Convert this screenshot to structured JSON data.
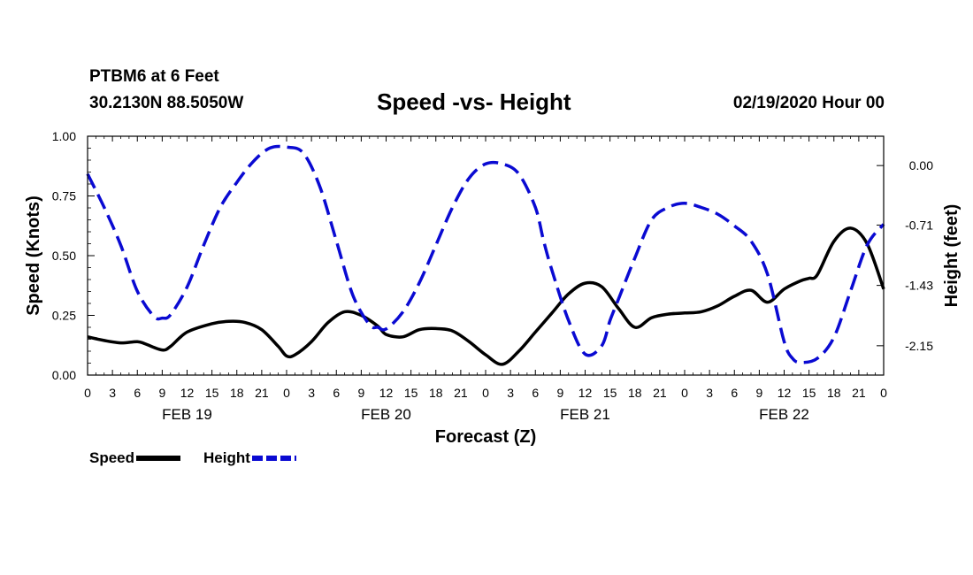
{
  "header": {
    "station": "PTBM6 at 6 Feet",
    "coords": "30.2130N 88.5050W",
    "title": "Speed -vs- Height",
    "datetime": "02/19/2020 Hour 00"
  },
  "legend": {
    "speed_label": "Speed",
    "height_label": "Height"
  },
  "colors": {
    "speed": "#000000",
    "height": "#0a0ad2"
  },
  "chart_data": {
    "type": "line",
    "title": "Speed -vs- Height",
    "xlabel": "Forecast (Z)",
    "ylabel": "Speed (Knots)",
    "y2label": "Height (feet)",
    "xlim": [
      0,
      96
    ],
    "ylim": [
      0,
      1
    ],
    "y2lim": [
      -2.5,
      0.35
    ],
    "x_ticks": [
      0,
      3,
      6,
      9,
      12,
      15,
      18,
      21,
      24,
      27,
      30,
      33,
      36,
      39,
      42,
      45,
      48,
      51,
      54,
      57,
      60,
      63,
      66,
      69,
      72,
      75,
      78,
      81,
      84,
      87,
      90,
      93,
      96
    ],
    "x_tick_labels": [
      "0",
      "3",
      "6",
      "9",
      "12",
      "15",
      "18",
      "21",
      "0",
      "3",
      "6",
      "9",
      "12",
      "15",
      "18",
      "21",
      "0",
      "3",
      "6",
      "9",
      "12",
      "15",
      "18",
      "21",
      "0",
      "3",
      "6",
      "9",
      "12",
      "15",
      "18",
      "21",
      "0"
    ],
    "day_labels": [
      {
        "x": 12,
        "label": "FEB 19"
      },
      {
        "x": 36,
        "label": "FEB 20"
      },
      {
        "x": 60,
        "label": "FEB 21"
      },
      {
        "x": 84,
        "label": "FEB 22"
      }
    ],
    "y_ticks": [
      "0.00",
      "0.25",
      "0.50",
      "0.75",
      "1.00"
    ],
    "y_tick_values": [
      0,
      0.25,
      0.5,
      0.75,
      1.0
    ],
    "y2_ticks": [
      "0.00",
      "-0.71",
      "-1.43",
      "-2.15"
    ],
    "y2_tick_values": [
      0.0,
      -0.71,
      -1.43,
      -2.15
    ],
    "series": [
      {
        "name": "Speed",
        "axis": "left",
        "style": "solid",
        "x": [
          0,
          2,
          4,
          6,
          7,
          9,
          10,
          12,
          15,
          17,
          19,
          21,
          23,
          24,
          25,
          27,
          29,
          31,
          33,
          35,
          36,
          38,
          40,
          42,
          44,
          46,
          48,
          50,
          52,
          54,
          56,
          58,
          60,
          62,
          64,
          66,
          68,
          70,
          72,
          74,
          76,
          78,
          80,
          82,
          84,
          86,
          87,
          88,
          90,
          92,
          94,
          96
        ],
        "values": [
          0.16,
          0.145,
          0.135,
          0.14,
          0.13,
          0.105,
          0.12,
          0.18,
          0.215,
          0.225,
          0.22,
          0.19,
          0.12,
          0.08,
          0.085,
          0.14,
          0.22,
          0.265,
          0.25,
          0.205,
          0.17,
          0.16,
          0.19,
          0.195,
          0.185,
          0.14,
          0.085,
          0.045,
          0.1,
          0.18,
          0.26,
          0.34,
          0.385,
          0.37,
          0.28,
          0.2,
          0.24,
          0.255,
          0.26,
          0.265,
          0.29,
          0.33,
          0.355,
          0.305,
          0.36,
          0.395,
          0.405,
          0.42,
          0.56,
          0.615,
          0.55,
          0.36
        ]
      },
      {
        "name": "Height",
        "axis": "right",
        "style": "dashed",
        "x": [
          0,
          2,
          4,
          6,
          8,
          9,
          10,
          12,
          14,
          16,
          18,
          20,
          22,
          24,
          26,
          28,
          30,
          32,
          34,
          35,
          36,
          38,
          40,
          42,
          44,
          46,
          48,
          50,
          52,
          54,
          55,
          56,
          58,
          60,
          62,
          63,
          64,
          66,
          68,
          70,
          72,
          74,
          76,
          78,
          80,
          82,
          84,
          85,
          86,
          88,
          90,
          92,
          94,
          96
        ],
        "values": [
          -0.1,
          -0.5,
          -0.95,
          -1.5,
          -1.8,
          -1.82,
          -1.78,
          -1.45,
          -0.95,
          -0.5,
          -0.2,
          0.05,
          0.21,
          0.22,
          0.15,
          -0.25,
          -0.9,
          -1.55,
          -1.9,
          -1.93,
          -1.95,
          -1.75,
          -1.4,
          -0.95,
          -0.5,
          -0.15,
          0.02,
          0.02,
          -0.1,
          -0.5,
          -0.9,
          -1.25,
          -1.85,
          -2.25,
          -2.15,
          -1.85,
          -1.6,
          -1.1,
          -0.65,
          -0.5,
          -0.45,
          -0.5,
          -0.58,
          -0.72,
          -0.9,
          -1.3,
          -2.1,
          -2.3,
          -2.35,
          -2.3,
          -2.05,
          -1.5,
          -0.95,
          -0.7
        ]
      }
    ]
  }
}
